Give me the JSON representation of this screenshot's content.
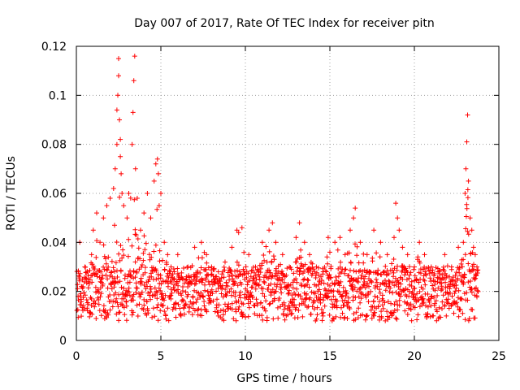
{
  "chart_data": {
    "type": "scatter",
    "title": "Day 007 of 2017, Rate Of TEC Index for receiver pitn",
    "xlabel": "GPS time / hours",
    "ylabel": "ROTI / TECUs",
    "xlim": [
      0,
      25
    ],
    "ylim": [
      0,
      0.12
    ],
    "xticks": [
      0,
      5,
      10,
      15,
      20,
      25
    ],
    "yticks": [
      0,
      0.02,
      0.04,
      0.06,
      0.08,
      0.1,
      0.12
    ],
    "xtick_labels": [
      "0",
      "5",
      "10",
      "15",
      "20",
      "25"
    ],
    "ytick_labels": [
      "0",
      "0.02",
      "0.04",
      "0.06",
      "0.08",
      "0.1",
      "0.12"
    ],
    "grid": true,
    "marker": "+",
    "marker_color": "#ff0000",
    "series": [
      {
        "name": "ROTI",
        "x": [
          0.1,
          0.2,
          0.3,
          0.5,
          0.7,
          0.9,
          1.0,
          1.2,
          1.4,
          1.6,
          1.8,
          2.0,
          2.2,
          2.3,
          2.4,
          2.4,
          2.45,
          2.5,
          2.5,
          2.55,
          2.6,
          2.6,
          2.65,
          2.7,
          2.8,
          3.0,
          3.1,
          3.3,
          3.35,
          3.4,
          3.45,
          3.5,
          3.6,
          3.8,
          4.0,
          4.2,
          4.4,
          4.6,
          4.7,
          4.8,
          4.85,
          4.9,
          5.0,
          5.2,
          5.4,
          5.6,
          5.8,
          6.0,
          6.3,
          6.6,
          7.0,
          7.4,
          7.7,
          8.0,
          8.4,
          8.8,
          9.2,
          9.5,
          9.6,
          9.8,
          10.2,
          10.6,
          11.0,
          11.4,
          11.6,
          11.8,
          12.2,
          12.6,
          13.0,
          13.2,
          13.5,
          13.8,
          14.2,
          14.6,
          14.9,
          15.0,
          15.3,
          15.6,
          15.9,
          16.2,
          16.4,
          16.5,
          16.8,
          17.2,
          17.6,
          18.0,
          18.4,
          18.8,
          18.9,
          19.0,
          19.1,
          19.3,
          19.6,
          20.0,
          20.3,
          20.6,
          21.0,
          21.4,
          21.8,
          22.2,
          22.6,
          22.9,
          23.0,
          23.05,
          23.1,
          23.15,
          23.2,
          23.3,
          23.4,
          23.5,
          23.6,
          23.7
        ],
        "y": [
          0.018,
          0.04,
          0.022,
          0.03,
          0.025,
          0.035,
          0.045,
          0.052,
          0.04,
          0.05,
          0.055,
          0.058,
          0.062,
          0.07,
          0.08,
          0.094,
          0.1,
          0.115,
          0.108,
          0.09,
          0.082,
          0.075,
          0.068,
          0.06,
          0.055,
          0.05,
          0.06,
          0.08,
          0.093,
          0.106,
          0.116,
          0.07,
          0.058,
          0.045,
          0.052,
          0.06,
          0.05,
          0.065,
          0.072,
          0.074,
          0.068,
          0.055,
          0.06,
          0.04,
          0.035,
          0.03,
          0.028,
          0.035,
          0.025,
          0.03,
          0.038,
          0.04,
          0.035,
          0.03,
          0.028,
          0.032,
          0.038,
          0.045,
          0.044,
          0.046,
          0.035,
          0.03,
          0.04,
          0.045,
          0.048,
          0.04,
          0.035,
          0.03,
          0.042,
          0.048,
          0.04,
          0.035,
          0.03,
          0.028,
          0.042,
          0.036,
          0.04,
          0.042,
          0.035,
          0.045,
          0.05,
          0.054,
          0.04,
          0.035,
          0.045,
          0.04,
          0.035,
          0.042,
          0.056,
          0.05,
          0.045,
          0.038,
          0.035,
          0.03,
          0.04,
          0.035,
          0.03,
          0.028,
          0.035,
          0.03,
          0.038,
          0.04,
          0.06,
          0.07,
          0.081,
          0.092,
          0.065,
          0.05,
          0.045,
          0.038,
          0.035,
          0.03
        ]
      }
    ]
  }
}
